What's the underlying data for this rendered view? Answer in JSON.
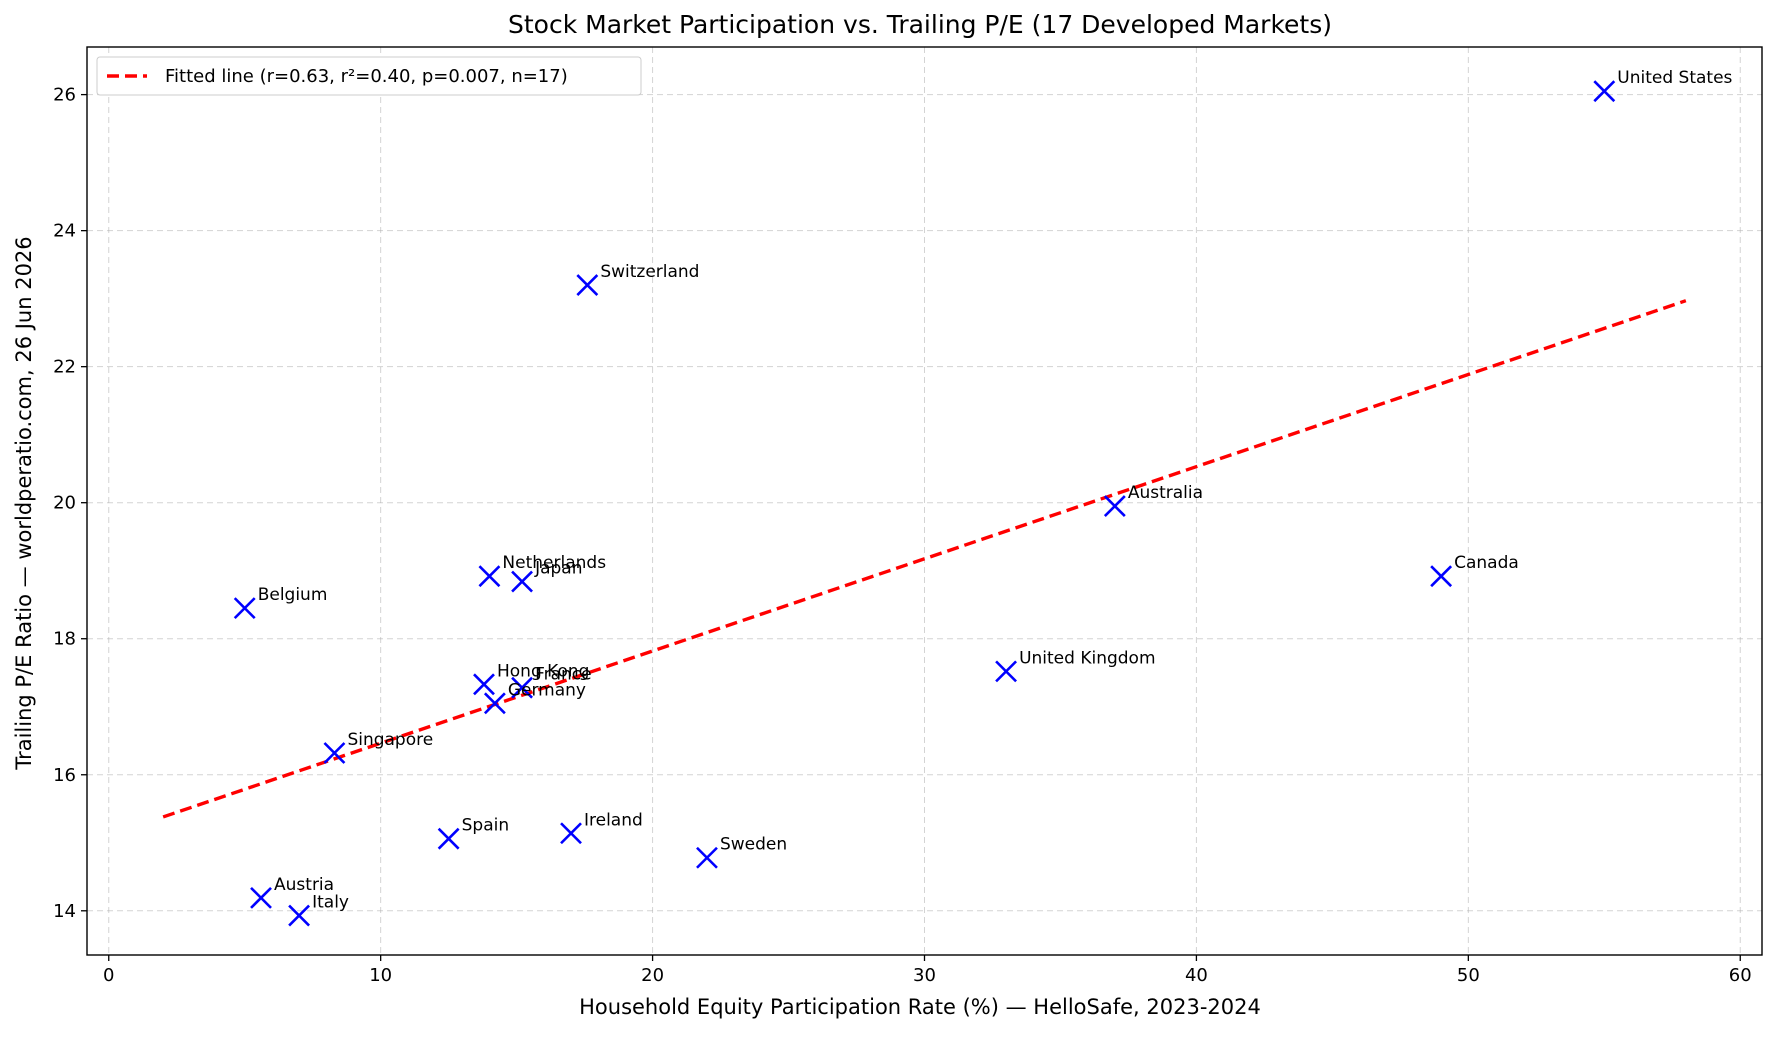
{
  "chart_data": {
    "type": "scatter",
    "title": "Stock Market Participation vs. Trailing P/E (17 Developed Markets)",
    "xlabel": "Household Equity Participation Rate (%) — HelloSafe, 2023-2024",
    "ylabel": "Trailing P/E Ratio — worldperatio.com, 26 Jun 2026",
    "xlim": [
      -0.8,
      60.8
    ],
    "ylim": [
      13.35,
      26.7
    ],
    "xticks": [
      0,
      10,
      20,
      30,
      40,
      50,
      60
    ],
    "yticks": [
      14,
      16,
      18,
      20,
      22,
      24,
      26
    ],
    "grid": true,
    "legend_position": "top-left",
    "legend_label": "Fitted line (r=0.63, r²=0.40, p=0.007, n=17)",
    "marker_color": "#0000ff",
    "fit_color": "#ff0000",
    "points": [
      {
        "label": "United States",
        "x": 55.0,
        "y": 26.05
      },
      {
        "label": "Switzerland",
        "x": 17.6,
        "y": 23.2
      },
      {
        "label": "Australia",
        "x": 37.0,
        "y": 19.95
      },
      {
        "label": "Canada",
        "x": 49.0,
        "y": 18.92
      },
      {
        "label": "Netherlands",
        "x": 14.0,
        "y": 18.92
      },
      {
        "label": "Japan",
        "x": 15.2,
        "y": 18.84
      },
      {
        "label": "Belgium",
        "x": 5.0,
        "y": 18.45
      },
      {
        "label": "United Kingdom",
        "x": 33.0,
        "y": 17.52
      },
      {
        "label": "Hong Kong",
        "x": 13.8,
        "y": 17.33
      },
      {
        "label": "France",
        "x": 15.2,
        "y": 17.28
      },
      {
        "label": "Germany",
        "x": 14.2,
        "y": 17.05
      },
      {
        "label": "Singapore",
        "x": 8.3,
        "y": 16.32
      },
      {
        "label": "Spain",
        "x": 12.5,
        "y": 15.06
      },
      {
        "label": "Ireland",
        "x": 17.0,
        "y": 15.14
      },
      {
        "label": "Sweden",
        "x": 22.0,
        "y": 14.78
      },
      {
        "label": "Austria",
        "x": 5.6,
        "y": 14.19
      },
      {
        "label": "Italy",
        "x": 7.0,
        "y": 13.93
      }
    ],
    "fit_line": {
      "x": [
        2.0,
        58.0
      ],
      "y": [
        15.38,
        22.97
      ]
    }
  }
}
